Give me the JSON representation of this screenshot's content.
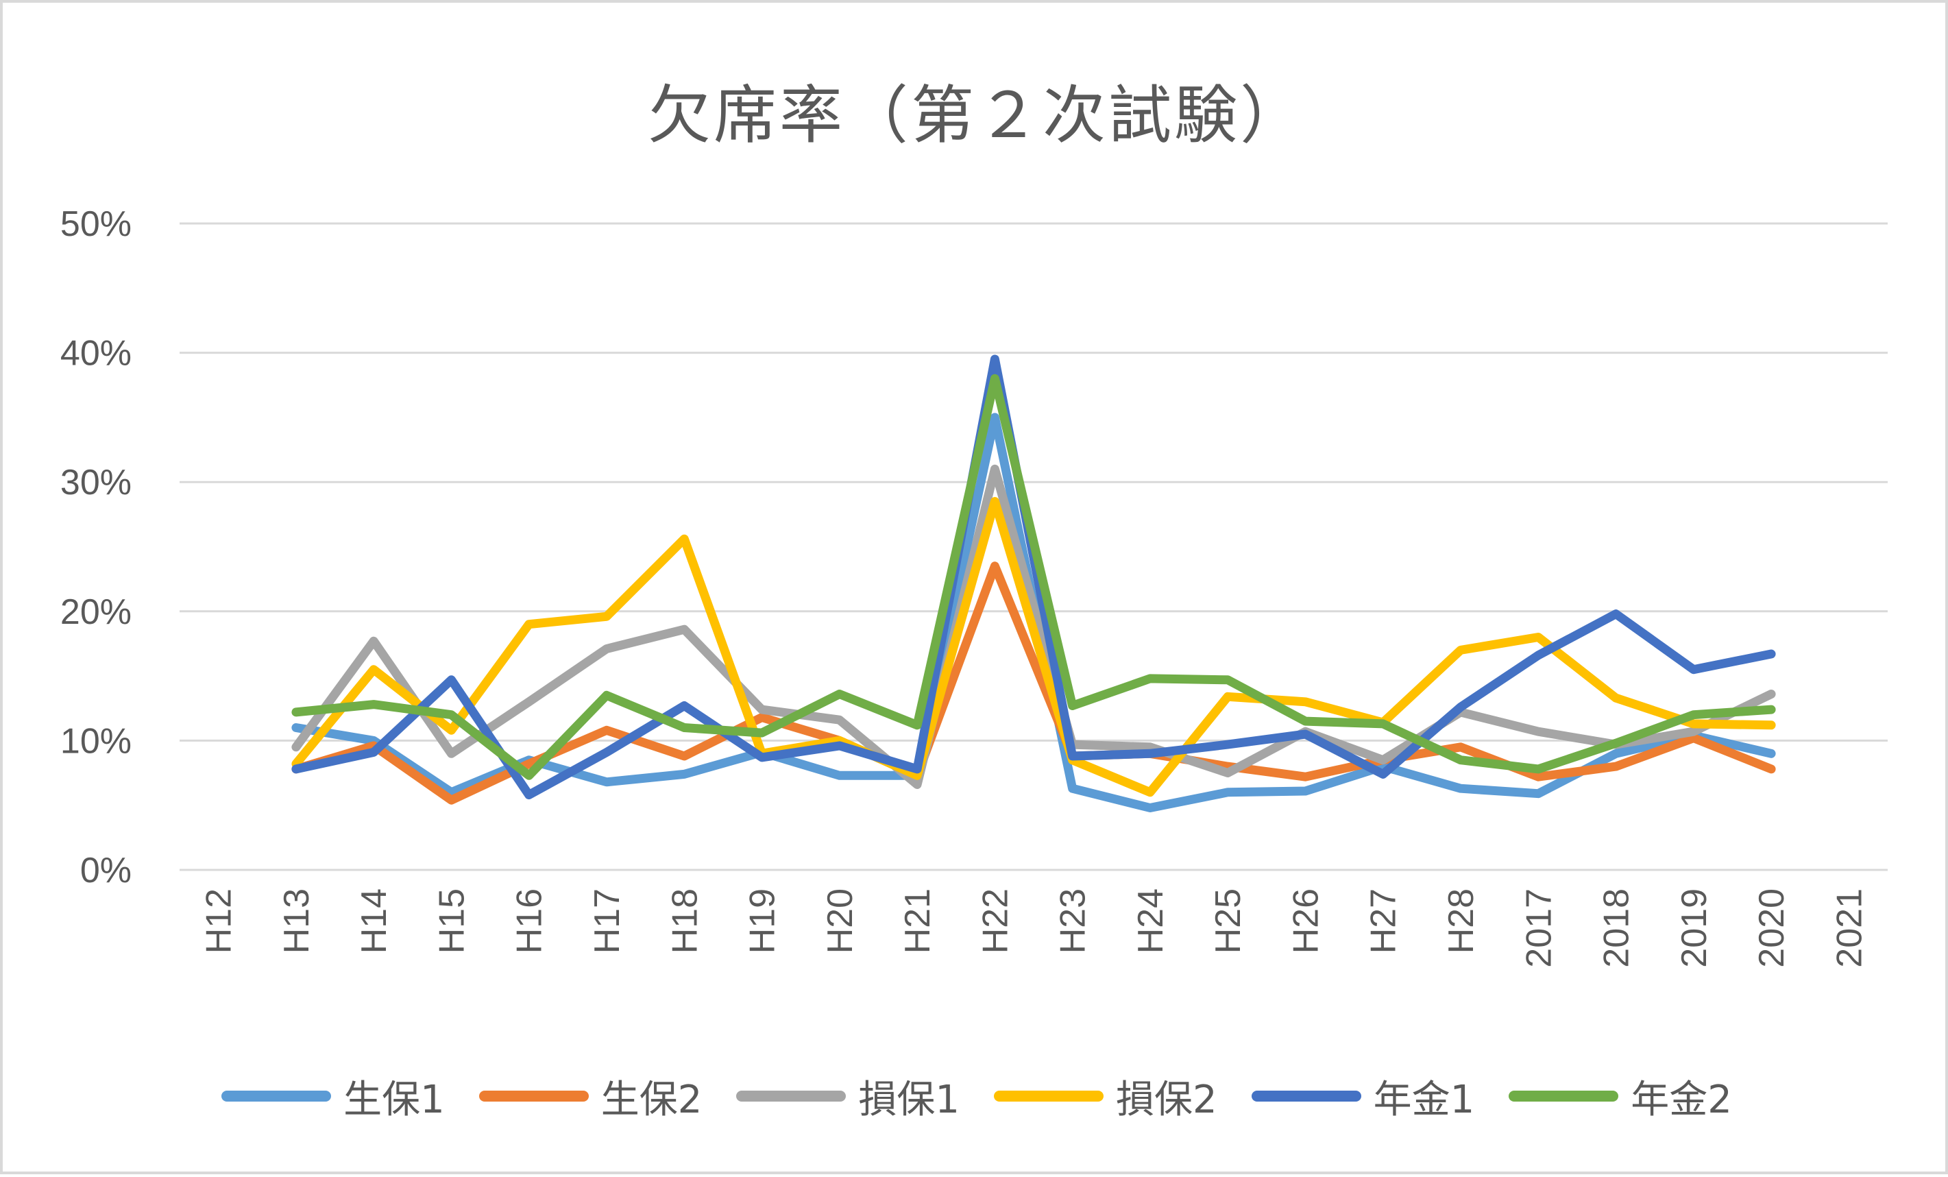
{
  "chart_data": {
    "type": "line",
    "title": "欠席率（第２次試験）",
    "xlabel": "",
    "ylabel": "",
    "ylim": [
      0,
      0.5
    ],
    "yticks": [
      "0%",
      "10%",
      "20%",
      "30%",
      "40%",
      "50%"
    ],
    "grid": true,
    "legend_position": "bottom",
    "categories": [
      "H12",
      "H13",
      "H14",
      "H15",
      "H16",
      "H17",
      "H18",
      "H19",
      "H20",
      "H21",
      "H22",
      "H23",
      "H24",
      "H25",
      "H26",
      "H27",
      "H28",
      "2017",
      "2018",
      "2019",
      "2020",
      "2021"
    ],
    "series": [
      {
        "name": "生保1",
        "color": "#5B9BD5",
        "values": [
          null,
          0.11,
          0.1,
          0.06,
          0.085,
          0.068,
          0.074,
          0.091,
          0.073,
          0.073,
          0.35,
          0.063,
          0.048,
          0.06,
          0.061,
          0.08,
          0.063,
          0.059,
          0.09,
          0.104,
          0.09,
          null
        ]
      },
      {
        "name": "生保2",
        "color": "#ED7D31",
        "values": [
          null,
          0.078,
          0.096,
          0.054,
          0.082,
          0.108,
          0.088,
          0.118,
          0.1,
          0.073,
          0.235,
          0.088,
          0.09,
          0.08,
          0.072,
          0.085,
          0.095,
          0.072,
          0.08,
          0.102,
          0.078,
          null
        ]
      },
      {
        "name": "損保1",
        "color": "#A5A5A5",
        "values": [
          null,
          0.095,
          0.177,
          0.09,
          0.13,
          0.171,
          0.186,
          0.124,
          0.116,
          0.066,
          0.31,
          0.097,
          0.095,
          0.075,
          0.107,
          0.085,
          0.122,
          0.107,
          0.097,
          0.107,
          0.136,
          null
        ]
      },
      {
        "name": "損保2",
        "color": "#FFC000",
        "values": [
          null,
          0.082,
          0.155,
          0.108,
          0.19,
          0.196,
          0.256,
          0.09,
          0.1,
          0.073,
          0.285,
          0.085,
          0.06,
          0.134,
          0.13,
          0.114,
          0.17,
          0.18,
          0.133,
          0.113,
          0.112,
          null
        ]
      },
      {
        "name": "年金1",
        "color": "#4472C4",
        "values": [
          null,
          0.078,
          0.091,
          0.147,
          0.058,
          0.091,
          0.127,
          0.087,
          0.096,
          0.078,
          0.395,
          0.088,
          0.09,
          0.097,
          0.105,
          0.074,
          0.126,
          0.166,
          0.198,
          0.155,
          0.167,
          null
        ]
      },
      {
        "name": "年金2",
        "color": "#70AD47",
        "values": [
          null,
          0.122,
          0.128,
          0.12,
          0.073,
          0.135,
          0.11,
          0.106,
          0.136,
          0.112,
          0.38,
          0.127,
          0.148,
          0.147,
          0.115,
          0.113,
          0.085,
          0.078,
          0.098,
          0.12,
          0.124,
          null
        ]
      }
    ]
  },
  "legend": {
    "items": [
      {
        "label": "生保1",
        "color": "#5B9BD5"
      },
      {
        "label": "生保2",
        "color": "#ED7D31"
      },
      {
        "label": "損保1",
        "color": "#A5A5A5"
      },
      {
        "label": "損保2",
        "color": "#FFC000"
      },
      {
        "label": "年金1",
        "color": "#4472C4"
      },
      {
        "label": "年金2",
        "color": "#70AD47"
      }
    ]
  },
  "style": {
    "gridline_color": "#D9D9D9",
    "text_color": "#595959"
  }
}
